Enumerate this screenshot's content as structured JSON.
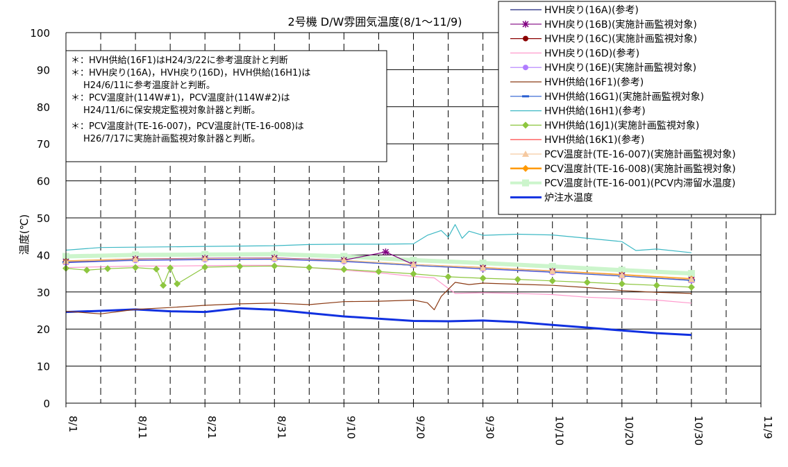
{
  "chart_data": {
    "type": "line",
    "title": "2号機 D/W雰囲気温度(8/1～11/9)",
    "ylabel": "温度(℃)",
    "xlabel": "",
    "ylim": [
      0,
      100
    ],
    "yticks": [
      0,
      10,
      20,
      30,
      40,
      50,
      60,
      70,
      80,
      90,
      100
    ],
    "x_domain": [
      "8/1",
      "11/9"
    ],
    "x_tick_labels": [
      "8/1",
      "8/11",
      "8/21",
      "8/31",
      "9/10",
      "9/20",
      "9/30",
      "10/10",
      "10/20",
      "10/30",
      "11/9"
    ],
    "grid": "horizontal solid, vertical dashed",
    "legend_position": "top-right",
    "annotations": [
      "＊：HVH供給(16F1)はH24/3/22に参考温度計と判断",
      "＊：HVH戻り(16A)，HVH戻り(16D)，HVH供給(16H1)は",
      "H24/6/11に参考温度計と判断。",
      "＊：PCV温度計(114W#1)，PCV温度計(114W#2)は",
      "H24/11/6に保安規定監視対象計器と判断。",
      "＊：PCV温度計(TE-16-007)，PCV温度計(TE-16-008)は",
      "H26/7/17に実施計画監視対象計器と判断。"
    ],
    "series": [
      {
        "name": "HVH戻り(16A)(参考)",
        "color": "#1a237e",
        "marker": "none",
        "width": 1.2,
        "x": [],
        "y": []
      },
      {
        "name": "HVH戻り(16B)(実施計画監視対象)",
        "color": "#800080",
        "marker": "asterisk",
        "width": 1.2,
        "x": [
          "8/1",
          "8/11",
          "8/21",
          "8/31",
          "9/10",
          "9/16",
          "9/20",
          "9/30",
          "10/10",
          "10/20",
          "10/30"
        ],
        "y": [
          38.2,
          38.9,
          39.1,
          39.2,
          38.6,
          40.8,
          37.4,
          36.5,
          35.6,
          34.5,
          33.3
        ]
      },
      {
        "name": "HVH戻り(16C)(実施計画監視対象)",
        "color": "#8b0000",
        "marker": "circle",
        "width": 1.2,
        "x": [
          "8/1",
          "8/11",
          "8/21",
          "8/31",
          "9/10",
          "9/20",
          "9/30",
          "10/10",
          "10/20",
          "10/30"
        ],
        "y": [
          38.1,
          38.7,
          38.9,
          39.0,
          38.4,
          37.3,
          36.4,
          35.5,
          34.4,
          33.2
        ]
      },
      {
        "name": "HVH戻り(16D)(参考)",
        "color": "#ff99cc",
        "marker": "none",
        "width": 1.2,
        "x": [
          "8/1",
          "8/6",
          "8/11",
          "8/16",
          "8/21",
          "8/26",
          "8/31",
          "9/5",
          "9/10",
          "9/15",
          "9/20",
          "9/23",
          "9/26",
          "9/30",
          "10/5",
          "10/10",
          "10/15",
          "10/20",
          "10/25",
          "10/30"
        ],
        "y": [
          36.6,
          36.8,
          37.0,
          37.0,
          37.1,
          37.2,
          37.2,
          36.6,
          35.9,
          35.2,
          34.2,
          33.8,
          29.6,
          29.8,
          29.6,
          29.3,
          28.6,
          28.2,
          27.8,
          27.0
        ]
      },
      {
        "name": "HVH戻り(16E)(実施計画監視対象)",
        "color": "#b07cff",
        "marker": "circle",
        "width": 1.2,
        "x": [
          "8/1",
          "8/11",
          "8/21",
          "8/31",
          "9/10",
          "9/20",
          "9/30",
          "10/10",
          "10/20",
          "10/30"
        ],
        "y": [
          37.9,
          38.5,
          38.7,
          38.8,
          38.2,
          37.2,
          36.2,
          35.3,
          34.3,
          33.1
        ]
      },
      {
        "name": "HVH供給(16F1)(参考)",
        "color": "#8b3a14",
        "marker": "none",
        "width": 1.2,
        "x": [
          "8/1",
          "8/6",
          "8/11",
          "8/16",
          "8/21",
          "8/26",
          "8/31",
          "9/5",
          "9/10",
          "9/15",
          "9/20",
          "9/22",
          "9/23",
          "9/24",
          "9/26",
          "9/28",
          "9/30",
          "10/5",
          "10/10",
          "10/15",
          "10/20",
          "10/25",
          "10/30"
        ],
        "y": [
          24.8,
          24.1,
          25.3,
          25.8,
          26.4,
          26.8,
          27.0,
          26.6,
          27.4,
          27.5,
          27.8,
          27.1,
          25.2,
          28.8,
          32.6,
          32.0,
          32.4,
          32.1,
          31.8,
          31.2,
          30.4,
          29.9,
          29.6
        ]
      },
      {
        "name": "HVH供給(16G1)(実施計画監視対象)",
        "color": "#2a5fd0",
        "marker": "dash",
        "width": 1.2,
        "x": [
          "8/1",
          "8/11",
          "8/21",
          "8/31",
          "9/10",
          "9/20",
          "9/30",
          "10/10",
          "10/20",
          "10/30"
        ],
        "y": [
          38.0,
          38.6,
          38.8,
          38.9,
          38.3,
          37.2,
          36.3,
          35.4,
          34.3,
          33.1
        ]
      },
      {
        "name": "HVH供給(16H1)(参考)",
        "color": "#3cb8c4",
        "marker": "none",
        "width": 1.2,
        "x": [
          "8/1",
          "8/6",
          "8/11",
          "8/16",
          "8/21",
          "8/26",
          "8/31",
          "9/5",
          "9/10",
          "9/15",
          "9/20",
          "9/22",
          "9/24",
          "9/25",
          "9/26",
          "9/27",
          "9/28",
          "9/30",
          "10/5",
          "10/10",
          "10/15",
          "10/20",
          "10/22",
          "10/25",
          "10/30"
        ],
        "y": [
          41.3,
          42.0,
          42.1,
          42.2,
          42.3,
          42.4,
          42.5,
          42.8,
          42.9,
          42.9,
          43.0,
          45.3,
          46.6,
          44.8,
          48.2,
          44.5,
          46.4,
          45.3,
          45.6,
          45.4,
          44.5,
          43.6,
          41.2,
          41.6,
          40.6
        ]
      },
      {
        "name": "HVH供給(16J1)(実施計画監視対象)",
        "color": "#8dc63f",
        "marker": "diamond",
        "width": 1.2,
        "x": [
          "8/1",
          "8/4",
          "8/7",
          "8/11",
          "8/14",
          "8/15",
          "8/16",
          "8/17",
          "8/21",
          "8/26",
          "8/31",
          "9/5",
          "9/10",
          "9/15",
          "9/20",
          "9/25",
          "9/30",
          "10/5",
          "10/10",
          "10/15",
          "10/20",
          "10/25",
          "10/30"
        ],
        "y": [
          36.4,
          35.9,
          36.3,
          36.6,
          36.2,
          31.8,
          36.5,
          32.2,
          36.7,
          36.9,
          37.0,
          36.6,
          36.1,
          35.5,
          34.9,
          34.1,
          33.7,
          33.4,
          33.0,
          32.6,
          32.2,
          31.8,
          31.3
        ]
      },
      {
        "name": "HVH供給(16K1)(参考)",
        "color": "#ff3333",
        "marker": "none",
        "width": 1.2,
        "x": [],
        "y": []
      },
      {
        "name": "PCV温度計(TE-16-007)(実施計画監視対象)",
        "color": "#f5c9a0",
        "marker": "triangle",
        "width": 1.2,
        "x": [
          "8/1",
          "8/11",
          "8/21",
          "8/31",
          "9/10",
          "9/20",
          "9/30",
          "10/10",
          "10/20",
          "10/30"
        ],
        "y": [
          38.3,
          38.8,
          39.0,
          39.1,
          38.5,
          37.4,
          36.5,
          35.6,
          34.5,
          33.4
        ]
      },
      {
        "name": "PCV温度計(TE-16-008)(実施計画監視対象)",
        "color": "#ff9900",
        "marker": "diamond",
        "width": 2.5,
        "x": [
          "8/1",
          "8/11",
          "8/21",
          "8/31",
          "9/10",
          "9/20",
          "9/30",
          "10/10",
          "10/20",
          "10/30"
        ],
        "y": [
          38.3,
          38.8,
          38.9,
          39.0,
          38.4,
          37.3,
          36.5,
          35.6,
          34.6,
          33.5
        ]
      },
      {
        "name": "PCV温度計(TE-16-001)(PCV内滞留水温度)",
        "color": "#ccf5cc",
        "marker": "square",
        "width": 6,
        "x": [
          "8/1",
          "8/11",
          "8/21",
          "8/31",
          "9/10",
          "9/20",
          "9/30",
          "10/10",
          "10/20",
          "10/30"
        ],
        "y": [
          39.6,
          40.0,
          40.1,
          40.2,
          39.6,
          38.6,
          37.8,
          36.9,
          35.9,
          35.0
        ]
      },
      {
        "name": "炉注水温度",
        "color": "#1030e0",
        "marker": "none",
        "width": 3,
        "x": [
          "8/1",
          "8/6",
          "8/11",
          "8/16",
          "8/21",
          "8/26",
          "8/31",
          "9/5",
          "9/10",
          "9/15",
          "9/20",
          "9/25",
          "9/30",
          "10/5",
          "10/10",
          "10/15",
          "10/20",
          "10/25",
          "10/30"
        ],
        "y": [
          24.6,
          24.9,
          25.3,
          24.8,
          24.6,
          25.6,
          25.2,
          24.3,
          23.4,
          22.8,
          22.2,
          22.1,
          22.3,
          21.9,
          21.1,
          20.4,
          19.6,
          18.9,
          18.4
        ]
      }
    ]
  }
}
